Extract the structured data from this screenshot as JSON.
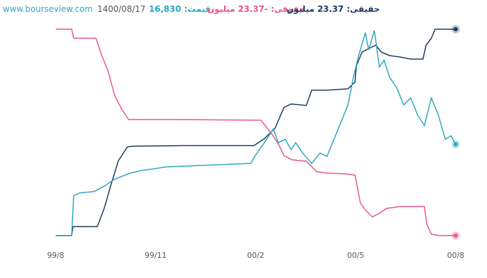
{
  "chart_data": {
    "type": "line",
    "source": "www.bourseview.com",
    "date": "1400/08/17",
    "xlim": [
      0,
      12
    ],
    "xticks": [
      {
        "value": 0,
        "label": "99/8"
      },
      {
        "value": 3,
        "label": "99/11"
      },
      {
        "value": 6,
        "label": "00/2"
      },
      {
        "value": 9,
        "label": "00/5"
      },
      {
        "value": 12,
        "label": "00/8"
      }
    ],
    "series": [
      {
        "name": "حقیقی: 23.37 میلیون",
        "color": "#1d3a5f",
        "ylim": [
          0,
          23.37
        ],
        "x": [
          0,
          0.48,
          0.52,
          1.25,
          1.46,
          1.67,
          1.88,
          2.15,
          2.3,
          3.76,
          5.95,
          6.26,
          6.58,
          6.85,
          7.06,
          7.52,
          7.68,
          8.14,
          8.77,
          8.98,
          9.02,
          9.19,
          9.39,
          9.6,
          9.77,
          10.02,
          10.33,
          10.65,
          11.02,
          11.11,
          11.27,
          11.38,
          11.69,
          12
        ],
        "values": [
          0,
          0,
          1.02,
          1.02,
          3.14,
          5.88,
          8.47,
          10.04,
          10.12,
          10.19,
          10.19,
          10.98,
          12.15,
          14.51,
          14.9,
          14.74,
          16.46,
          16.46,
          16.62,
          17.4,
          19.21,
          20.77,
          21.17,
          21.56,
          20.77,
          20.38,
          20.22,
          19.99,
          19.99,
          21.56,
          22.34,
          23.37,
          23.37,
          23.37
        ]
      },
      {
        "name": "حقوقی: -23.37 میلیون",
        "color": "#e9577f",
        "ylim": [
          -23.37,
          0
        ],
        "x": [
          0,
          0.48,
          0.54,
          1.21,
          1.36,
          1.57,
          1.77,
          1.98,
          2.19,
          3.55,
          6.16,
          6.47,
          6.68,
          6.85,
          7.1,
          7.52,
          7.83,
          8.14,
          8.66,
          8.98,
          9.04,
          9.14,
          9.29,
          9.5,
          9.71,
          9.92,
          10.33,
          11.06,
          11.13,
          11.27,
          11.48,
          12
        ],
        "values": [
          0,
          0,
          -1.02,
          -1.02,
          -2.75,
          -4.72,
          -7.48,
          -9.05,
          -10.23,
          -10.23,
          -10.31,
          -11.8,
          -12.98,
          -14.32,
          -14.79,
          -14.95,
          -16.13,
          -16.29,
          -16.37,
          -16.53,
          -17.71,
          -19.67,
          -20.46,
          -21.25,
          -20.85,
          -20.3,
          -20.07,
          -20.07,
          -22.03,
          -23.21,
          -23.37,
          -23.37
        ]
      },
      {
        "name": "قیمت: 16,830",
        "color": "#2ea6c1",
        "ylim": [
          4000,
          33000
        ],
        "x": [
          0,
          0.48,
          0.54,
          0.73,
          1.15,
          1.46,
          1.77,
          2.19,
          2.51,
          3.34,
          4.38,
          5.85,
          6.01,
          6.26,
          6.53,
          6.68,
          6.89,
          7.06,
          7.2,
          7.41,
          7.68,
          7.93,
          8.14,
          8.35,
          8.56,
          8.77,
          8.93,
          9.08,
          9.29,
          9.39,
          9.56,
          9.71,
          9.85,
          10.02,
          10.23,
          10.44,
          10.65,
          10.86,
          11.06,
          11.27,
          11.48,
          11.69,
          11.86,
          12
        ],
        "values": [
          4000,
          4000,
          9607,
          9993,
          10187,
          10960,
          11927,
          12700,
          13087,
          13667,
          13860,
          14150,
          15407,
          17050,
          18983,
          17050,
          17533,
          16083,
          17050,
          15600,
          14150,
          15600,
          15117,
          17533,
          19950,
          22367,
          26233,
          29133,
          32517,
          30100,
          32807,
          27683,
          28650,
          26233,
          24783,
          22367,
          23333,
          20917,
          19467,
          23333,
          20917,
          17533,
          18017,
          16830
        ]
      }
    ]
  }
}
